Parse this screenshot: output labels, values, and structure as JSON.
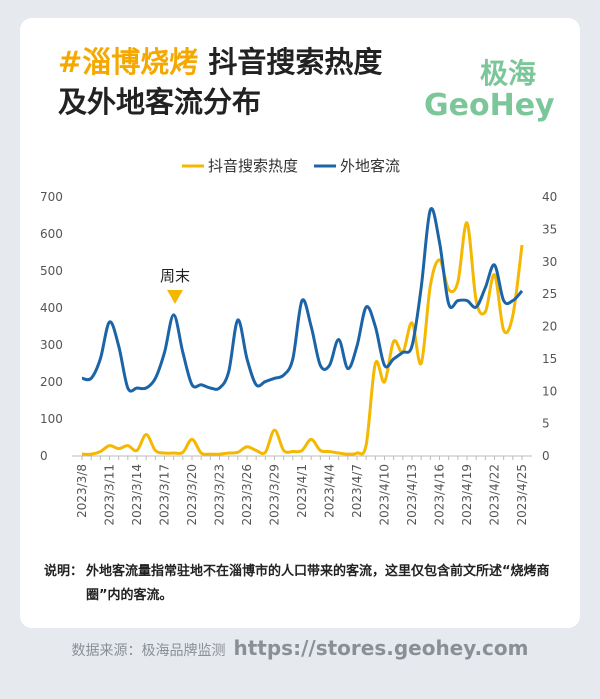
{
  "title_highlight": "#淄博烧烤",
  "title": "抖音搜索热度 及外地客流分布",
  "logo": {
    "cn": "极海",
    "en": "GeoHey"
  },
  "note": {
    "label": "说明：",
    "text": "外地客流量指常驻地不在淄博市的人口带来的客流，这里仅包含前文所述“烧烤商圈”内的客流。"
  },
  "footer": {
    "source": "数据来源：极海品牌监测",
    "url": "https://stores.geohey.com"
  },
  "chart_data": {
    "type": "line",
    "categories": [
      "2023/3/8",
      null,
      null,
      "2023/3/11",
      null,
      null,
      "2023/3/14",
      null,
      null,
      "2023/3/17",
      null,
      null,
      "2023/3/20",
      null,
      null,
      "2023/3/23",
      null,
      null,
      "2023/3/26",
      null,
      null,
      "2023/3/29",
      null,
      null,
      "2023/4/1",
      null,
      null,
      "2023/4/4",
      null,
      null,
      "2023/4/7",
      null,
      null,
      "2023/4/10",
      null,
      null,
      "2023/4/13",
      null,
      null,
      "2023/4/16",
      null,
      null,
      "2023/4/19",
      null,
      null,
      "2023/4/22",
      null,
      null,
      "2023/4/25"
    ],
    "series": [
      {
        "name": "抖音搜索热度",
        "color": "#f5b800",
        "values": [
          5,
          5,
          12,
          28,
          20,
          28,
          15,
          58,
          15,
          8,
          8,
          10,
          45,
          8,
          5,
          5,
          8,
          10,
          25,
          15,
          10,
          70,
          15,
          12,
          15,
          45,
          15,
          12,
          8,
          5,
          8,
          30,
          250,
          200,
          310,
          280,
          360,
          250,
          460,
          530,
          450,
          470,
          630,
          420,
          390,
          490,
          340,
          380,
          570
        ]
      },
      {
        "name": "外地客流",
        "color": "#1c64a8",
        "axis": "y2",
        "values": [
          12,
          12,
          15,
          20.7,
          17,
          10.5,
          10.5,
          10.5,
          12,
          16,
          21.8,
          16,
          11,
          11,
          10.5,
          10.5,
          13,
          21,
          15,
          11,
          11.5,
          12,
          12.5,
          15,
          24,
          20,
          14,
          14,
          18,
          13.5,
          17,
          23,
          20,
          14,
          15,
          16,
          17,
          26,
          38,
          33,
          23.5,
          24,
          24,
          23,
          26,
          29.5,
          24,
          24,
          25.5
        ]
      }
    ],
    "ylim": [
      0,
      700
    ],
    "yticks": [
      0,
      100,
      200,
      300,
      400,
      500,
      600,
      700
    ],
    "y2lim": [
      0,
      40
    ],
    "y2ticks": [
      0,
      5,
      10,
      15,
      20,
      25,
      30,
      35,
      40
    ],
    "legend": "top",
    "annotations": [
      {
        "text": "周末"
      }
    ]
  }
}
